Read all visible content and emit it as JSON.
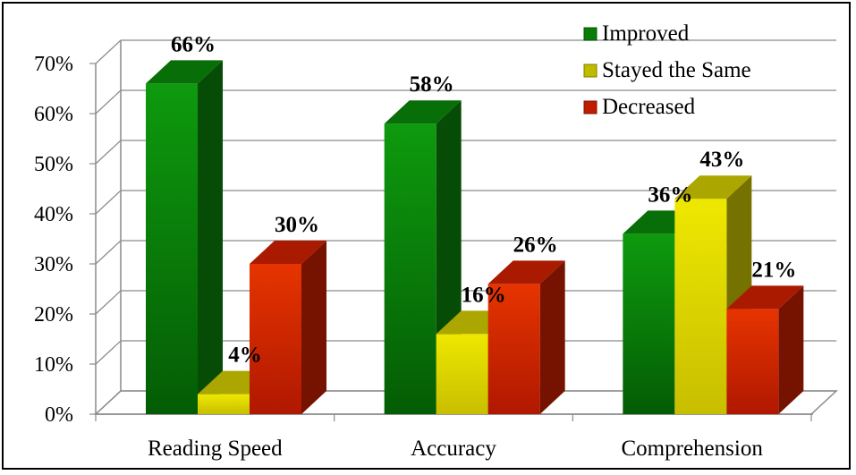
{
  "chart_data": {
    "type": "bar",
    "categories": [
      "Reading Speed",
      "Accuracy",
      "Comprehension"
    ],
    "series": [
      {
        "name": "Improved",
        "values": [
          66,
          58,
          36
        ],
        "labels": [
          "66%",
          "58%",
          "36%"
        ],
        "color": "#0a8a0a"
      },
      {
        "name": "Stayed the Same",
        "values": [
          4,
          16,
          43
        ],
        "labels": [
          "4%",
          "16%",
          "43%"
        ],
        "color": "#d6d000"
      },
      {
        "name": "Decreased",
        "values": [
          30,
          26,
          21
        ],
        "labels": [
          "30%",
          "26%",
          "21%"
        ],
        "color": "#d42000"
      }
    ],
    "ylim": [
      0,
      70
    ],
    "yticks": [
      "0%",
      "10%",
      "20%",
      "30%",
      "40%",
      "50%",
      "60%",
      "70%"
    ],
    "grid": true,
    "legend": "top-right",
    "style": "3d-clustered-column"
  }
}
